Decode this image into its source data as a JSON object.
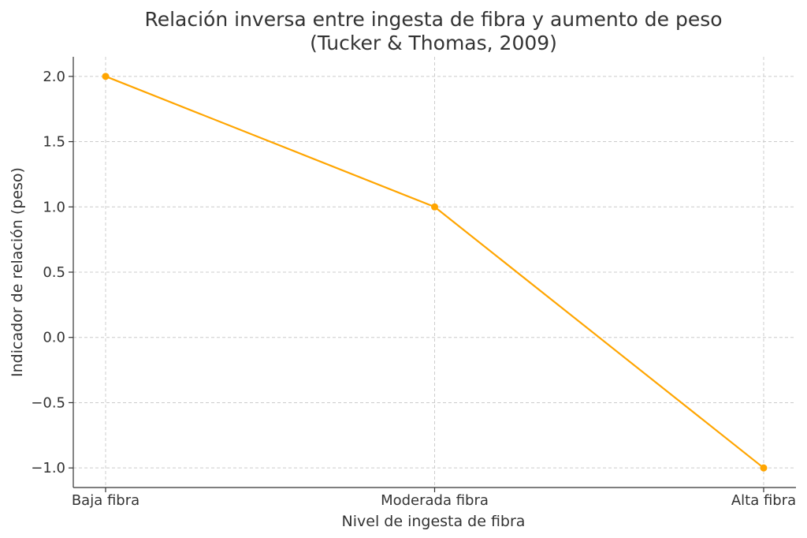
{
  "chart_data": {
    "type": "line",
    "title": "Relación inversa entre ingesta de fibra y aumento de peso",
    "subtitle": "(Tucker & Thomas, 2009)",
    "xlabel": "Nivel de ingesta de fibra",
    "ylabel": "Indicador de relación (peso)",
    "categories": [
      "Baja fibra",
      "Moderada fibra",
      "Alta fibra"
    ],
    "series": [
      {
        "values": [
          2,
          1,
          -1
        ],
        "color": "#FFA500"
      }
    ],
    "ylim": [
      -1.15,
      2.15
    ],
    "yticks": [
      -1.0,
      -0.5,
      0.0,
      0.5,
      1.0,
      1.5,
      2.0
    ],
    "ytick_labels": [
      "−1.0",
      "−0.5",
      "0.0",
      "0.5",
      "1.0",
      "1.5",
      "2.0"
    ],
    "grid": true,
    "marker": "circle"
  }
}
